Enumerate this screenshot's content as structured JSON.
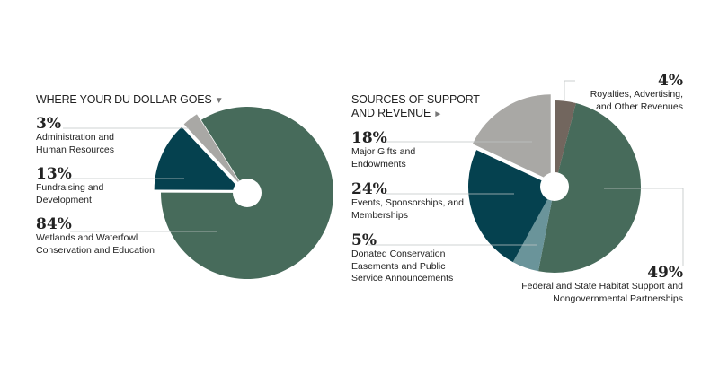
{
  "chart_data": [
    {
      "type": "pie",
      "title": "WHERE YOUR DU DOLLAR GOES",
      "title_icon": "triangle-down-icon",
      "slices": [
        {
          "pct": "3%",
          "value": 3,
          "label": "Administration and Human Resources",
          "color": "#a9a8a5",
          "exploded": true
        },
        {
          "pct": "13%",
          "value": 13,
          "label": "Fundraising and Development",
          "color": "#05414f",
          "exploded": true
        },
        {
          "pct": "84%",
          "value": 84,
          "label": "Wetlands and Waterfowl Conservation and Education",
          "color": "#476b5b",
          "exploded": false
        }
      ]
    },
    {
      "type": "pie",
      "title": "SOURCES OF SUPPORT AND REVENUE",
      "title_icon": "triangle-right-icon",
      "slices": [
        {
          "pct": "4%",
          "value": 4,
          "label": "Royalties, Advertising, and Other Revenues",
          "color": "#72665e",
          "exploded": false
        },
        {
          "pct": "49%",
          "value": 49,
          "label": "Federal and State Habitat Support and Nongovernmental Partnerships",
          "color": "#476b5b",
          "exploded": false
        },
        {
          "pct": "5%",
          "value": 5,
          "label": "Donated Conservation Easements and Public Service Announcements",
          "color": "#6a949a",
          "exploded": false
        },
        {
          "pct": "24%",
          "value": 24,
          "label": "Events, Sponsorships, and Memberships",
          "color": "#05414f",
          "exploded": false
        },
        {
          "pct": "18%",
          "value": 18,
          "label": "Major Gifts and Endowments",
          "color": "#a9a8a5",
          "exploded": true
        }
      ]
    }
  ]
}
